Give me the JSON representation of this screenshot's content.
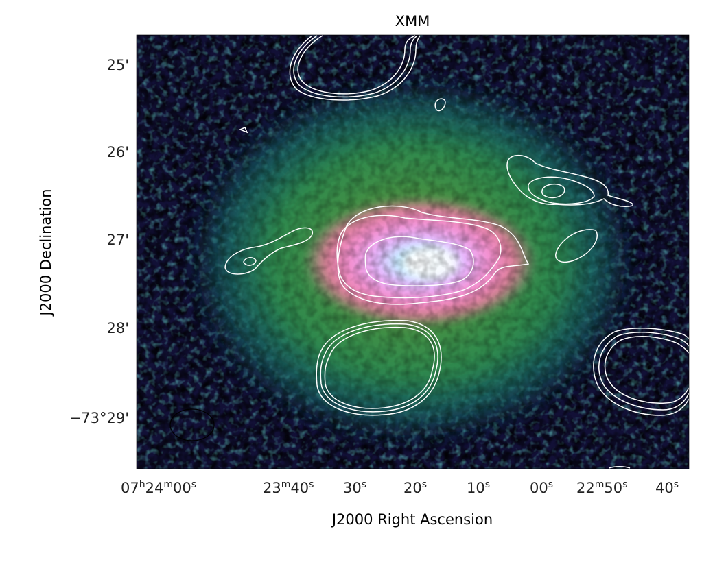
{
  "figure": {
    "title": "XMM",
    "xlabel": "J2000 Right Ascension",
    "ylabel": "J2000 Declination",
    "dec_ticks": [
      {
        "deg": "",
        "min": "25",
        "label": "25'"
      },
      {
        "deg": "",
        "min": "26",
        "label": "26'"
      },
      {
        "deg": "",
        "min": "27",
        "label": "27'"
      },
      {
        "deg": "",
        "min": "28",
        "label": "28'"
      },
      {
        "deg": "−73°",
        "min": "29",
        "label": "−73°29'"
      }
    ],
    "ra_ticks": [
      {
        "h": "07",
        "m": "24",
        "s": "00"
      },
      {
        "h": "",
        "m": "23",
        "s": "40"
      },
      {
        "h": "",
        "m": "",
        "s": "30"
      },
      {
        "h": "",
        "m": "",
        "s": "20"
      },
      {
        "h": "",
        "m": "",
        "s": "10"
      },
      {
        "h": "",
        "m": "",
        "s": "00"
      },
      {
        "h": "",
        "m": "22",
        "s": "50"
      },
      {
        "h": "",
        "m": "",
        "s": "40"
      }
    ],
    "units": {
      "h": "h",
      "m": "m",
      "s": "s"
    },
    "colormap": [
      "#000000",
      "#121036",
      "#1b2f5e",
      "#176a6b",
      "#2e8a4e",
      "#6f9a34",
      "#b08a4c",
      "#de7f9a",
      "#f48fd0",
      "#e7b6ff",
      "#c2f0ff",
      "#ffffff"
    ],
    "contour_color": "#ffffff",
    "beam_color": "#000000"
  }
}
